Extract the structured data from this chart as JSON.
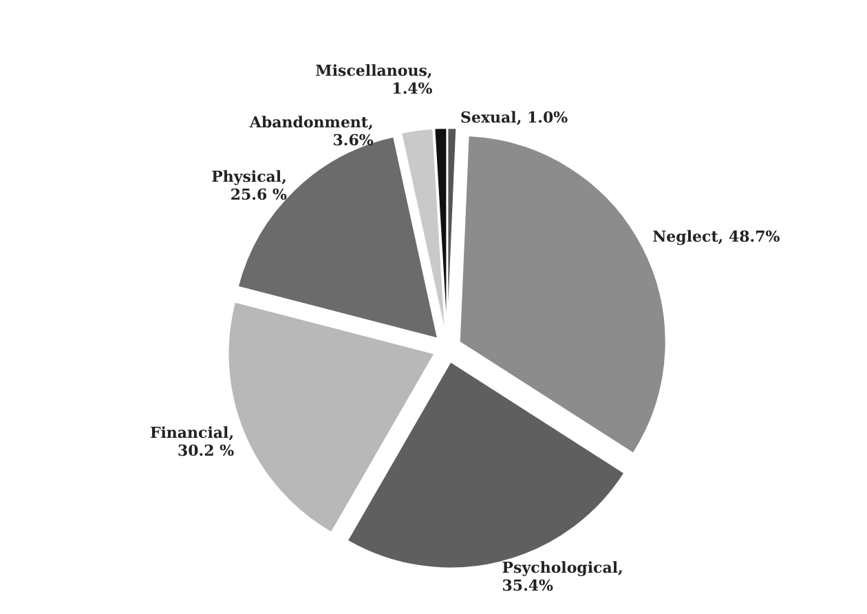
{
  "chart_data": {
    "type": "pie",
    "categories": [
      "Sexual",
      "Neglect",
      "Psychological",
      "Financial",
      "Physical",
      "Abandonment",
      "Miscellanous"
    ],
    "values": [
      1.0,
      48.7,
      35.4,
      30.2,
      25.6,
      3.6,
      1.4
    ],
    "colors": [
      "#555555",
      "#8c8c8c",
      "#5f5f5f",
      "#b8b8b8",
      "#6b6b6b",
      "#c9c9c9",
      "#111111"
    ],
    "value_labels": [
      ", 1.0%",
      ", 48.7%",
      ", 35.4%",
      ", 30.2 %",
      ", 25.6 %",
      ", 3.6%",
      ", 1.4%"
    ],
    "legend": false
  }
}
